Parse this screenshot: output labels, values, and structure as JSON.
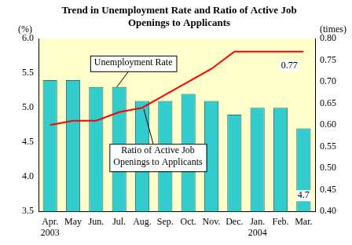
{
  "chart_data": {
    "type": "bar",
    "title": "Trend in Unemployment Rate and Ratio of Active Job Openings to Applicants",
    "categories": [
      "Apr.",
      "May",
      "Jun.",
      "Jul.",
      "Aug.",
      "Sep.",
      "Oct.",
      "Nov.",
      "Dec.",
      "Jan.",
      "Feb.",
      "Mar."
    ],
    "year_labels": [
      "2003",
      null,
      null,
      null,
      null,
      null,
      null,
      null,
      null,
      "2004",
      null,
      null
    ],
    "y_label": "(%)",
    "y2_label": "(times)",
    "series": [
      {
        "name": "Unemployment Rate",
        "type": "bar",
        "color": "#33cccc",
        "values": [
          5.4,
          5.4,
          5.3,
          5.3,
          5.1,
          5.1,
          5.2,
          5.1,
          4.9,
          5.0,
          5.0,
          4.7
        ]
      },
      {
        "name": "Ratio of Active Job Openings to Applicants",
        "type": "line",
        "axis": "y2",
        "color": "#ff0000",
        "marker": "none",
        "values": [
          0.6,
          0.61,
          0.61,
          0.63,
          0.64,
          0.67,
          0.7,
          0.73,
          0.77,
          0.77,
          0.77,
          0.77
        ]
      }
    ],
    "ylim": [
      3.5,
      6.0
    ],
    "yticks": [
      3.5,
      {
        "value": 4,
        "label": "4.0"
      },
      4.5,
      {
        "value": 5,
        "label": "5.0"
      },
      5.5,
      {
        "value": 6,
        "label": "6.0"
      }
    ],
    "y2lim": [
      0.4,
      0.8
    ],
    "y2ticks": [
      {
        "value": 0.4,
        "label": "0.40"
      },
      0.45,
      {
        "value": 0.5,
        "label": "0.50"
      },
      0.55,
      {
        "value": 0.6,
        "label": "0.60"
      },
      0.65,
      {
        "value": 0.7,
        "label": "0.70"
      },
      0.75,
      {
        "value": 0.8,
        "label": "0.80"
      }
    ],
    "grid": false,
    "annotations": [
      {
        "text": "0.77"
      },
      {
        "text": "4.7"
      }
    ]
  }
}
